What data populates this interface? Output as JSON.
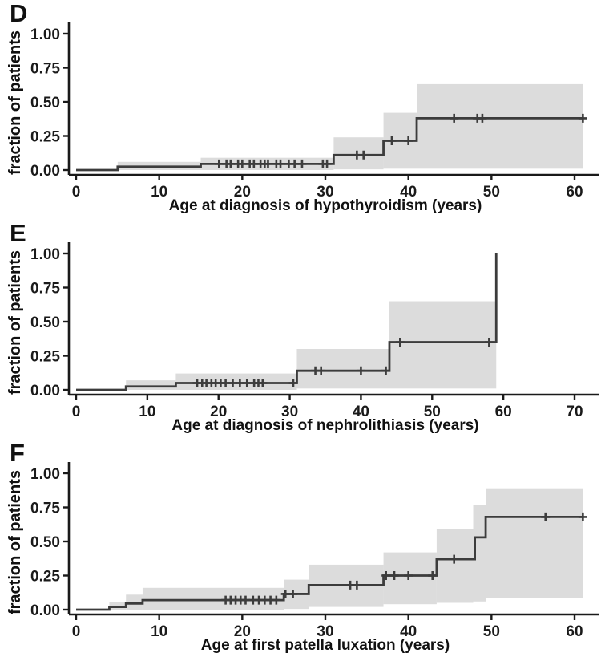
{
  "figure": {
    "background": "#ffffff",
    "text_color": "#1a1a1a",
    "panel_labels": [
      "D",
      "E",
      "F"
    ]
  },
  "chart_data": [
    {
      "type": "line",
      "subtype": "kaplan-meier-step",
      "panel_label": "D",
      "xlabel": "Age at diagnosis of hypothyroidism (years)",
      "ylabel": "fraction of patients",
      "x_ticks": [
        0,
        10,
        20,
        30,
        40,
        50,
        60
      ],
      "y_ticks": [
        {
          "v": 0.0,
          "label": "0.00"
        },
        {
          "v": 0.25,
          "label": "0.25"
        },
        {
          "v": 0.5,
          "label": "0.50"
        },
        {
          "v": 0.75,
          "label": "0.75"
        },
        {
          "v": 1.0,
          "label": "1.00"
        }
      ],
      "ylim": [
        0,
        1
      ],
      "end_x": 61,
      "steps": [
        {
          "x": 0,
          "y": 0
        },
        {
          "x": 5,
          "y": 0.025
        },
        {
          "x": 15,
          "y": 0.045
        },
        {
          "x": 31,
          "y": 0.11
        },
        {
          "x": 37,
          "y": 0.215
        },
        {
          "x": 41,
          "y": 0.38
        }
      ],
      "band": [
        {
          "x0": 5,
          "x1": 15,
          "lo": 0.0,
          "hi": 0.06
        },
        {
          "x0": 15,
          "x1": 31,
          "lo": 0.0,
          "hi": 0.09
        },
        {
          "x0": 31,
          "x1": 37,
          "lo": 0.005,
          "hi": 0.24
        },
        {
          "x0": 37,
          "x1": 41,
          "lo": 0.01,
          "hi": 0.42
        },
        {
          "x0": 41,
          "x1": 61,
          "lo": 0.01,
          "hi": 0.63
        }
      ],
      "censors": [
        [
          17.2,
          0.045
        ],
        [
          18.1,
          0.045
        ],
        [
          18.6,
          0.045
        ],
        [
          19.5,
          0.045
        ],
        [
          20.0,
          0.045
        ],
        [
          20.9,
          0.045
        ],
        [
          21.4,
          0.045
        ],
        [
          22.2,
          0.045
        ],
        [
          22.7,
          0.045
        ],
        [
          23.1,
          0.045
        ],
        [
          24.1,
          0.045
        ],
        [
          24.6,
          0.045
        ],
        [
          25.6,
          0.045
        ],
        [
          26.3,
          0.045
        ],
        [
          27.2,
          0.045
        ],
        [
          29.7,
          0.045
        ],
        [
          30.2,
          0.045
        ],
        [
          33.8,
          0.11
        ],
        [
          34.6,
          0.11
        ],
        [
          38.0,
          0.215
        ],
        [
          40.0,
          0.215
        ],
        [
          45.5,
          0.38
        ],
        [
          48.3,
          0.38
        ],
        [
          48.9,
          0.38
        ],
        [
          61.0,
          0.38
        ]
      ],
      "colors": {
        "band": "#dcdcdc",
        "line": "#3c3c3c",
        "axis": "#1a1a1a"
      }
    },
    {
      "type": "line",
      "subtype": "kaplan-meier-step",
      "panel_label": "E",
      "xlabel": "Age at diagnosis of nephrolithiasis (years)",
      "ylabel": "fraction of patients",
      "x_ticks": [
        0,
        10,
        20,
        30,
        40,
        50,
        60,
        70
      ],
      "y_ticks": [
        {
          "v": 0.0,
          "label": "0.00"
        },
        {
          "v": 0.25,
          "label": "0.25"
        },
        {
          "v": 0.5,
          "label": "0.50"
        },
        {
          "v": 0.75,
          "label": "0.75"
        },
        {
          "v": 1.0,
          "label": "1.00"
        }
      ],
      "ylim": [
        0,
        1
      ],
      "end_x": 59,
      "steps": [
        {
          "x": 0,
          "y": 0
        },
        {
          "x": 7,
          "y": 0.025
        },
        {
          "x": 14,
          "y": 0.05
        },
        {
          "x": 31,
          "y": 0.14
        },
        {
          "x": 44,
          "y": 0.35
        },
        {
          "x": 59,
          "y": 1.0
        }
      ],
      "band": [
        {
          "x0": 7,
          "x1": 14,
          "lo": 0.0,
          "hi": 0.07
        },
        {
          "x0": 14,
          "x1": 31,
          "lo": 0.0,
          "hi": 0.12
        },
        {
          "x0": 31,
          "x1": 44,
          "lo": 0.01,
          "hi": 0.3
        },
        {
          "x0": 44,
          "x1": 59,
          "lo": 0.01,
          "hi": 0.65
        }
      ],
      "censors": [
        [
          17.0,
          0.05
        ],
        [
          17.7,
          0.05
        ],
        [
          18.3,
          0.05
        ],
        [
          19.0,
          0.05
        ],
        [
          19.6,
          0.05
        ],
        [
          20.3,
          0.05
        ],
        [
          21.0,
          0.05
        ],
        [
          22.0,
          0.05
        ],
        [
          23.0,
          0.05
        ],
        [
          24.0,
          0.05
        ],
        [
          25.0,
          0.05
        ],
        [
          25.6,
          0.05
        ],
        [
          26.2,
          0.05
        ],
        [
          30.5,
          0.05
        ],
        [
          33.6,
          0.14
        ],
        [
          34.4,
          0.14
        ],
        [
          40.0,
          0.14
        ],
        [
          43.5,
          0.14
        ],
        [
          45.5,
          0.35
        ],
        [
          58.0,
          0.35
        ]
      ],
      "colors": {
        "band": "#dcdcdc",
        "line": "#3c3c3c",
        "axis": "#1a1a1a"
      }
    },
    {
      "type": "line",
      "subtype": "kaplan-meier-step",
      "panel_label": "F",
      "xlabel": "Age at first patella luxation (years)",
      "ylabel": "fraction of patients",
      "x_ticks": [
        0,
        10,
        20,
        30,
        40,
        50,
        60
      ],
      "y_ticks": [
        {
          "v": 0.0,
          "label": "0.00"
        },
        {
          "v": 0.25,
          "label": "0.25"
        },
        {
          "v": 0.5,
          "label": "0.50"
        },
        {
          "v": 0.75,
          "label": "0.75"
        },
        {
          "v": 1.0,
          "label": "1.00"
        }
      ],
      "ylim": [
        0,
        1
      ],
      "end_x": 61,
      "steps": [
        {
          "x": 0,
          "y": 0
        },
        {
          "x": 4,
          "y": 0.02
        },
        {
          "x": 6,
          "y": 0.045
        },
        {
          "x": 8,
          "y": 0.07
        },
        {
          "x": 25,
          "y": 0.115
        },
        {
          "x": 28,
          "y": 0.18
        },
        {
          "x": 37,
          "y": 0.25
        },
        {
          "x": 43.4,
          "y": 0.37
        },
        {
          "x": 48,
          "y": 0.53
        },
        {
          "x": 49.3,
          "y": 0.68
        }
      ],
      "band": [
        {
          "x0": 4,
          "x1": 6,
          "lo": 0.0,
          "hi": 0.055
        },
        {
          "x0": 6,
          "x1": 8,
          "lo": 0.0,
          "hi": 0.11
        },
        {
          "x0": 8,
          "x1": 25,
          "lo": 0.0,
          "hi": 0.16
        },
        {
          "x0": 25,
          "x1": 28,
          "lo": 0.005,
          "hi": 0.22
        },
        {
          "x0": 28,
          "x1": 37,
          "lo": 0.02,
          "hi": 0.33
        },
        {
          "x0": 37,
          "x1": 43.4,
          "lo": 0.04,
          "hi": 0.42
        },
        {
          "x0": 43.4,
          "x1": 47.8,
          "lo": 0.05,
          "hi": 0.59
        },
        {
          "x0": 47.8,
          "x1": 49.3,
          "lo": 0.06,
          "hi": 0.77
        },
        {
          "x0": 49.3,
          "x1": 61,
          "lo": 0.085,
          "hi": 0.89
        }
      ],
      "censors": [
        [
          18.0,
          0.07
        ],
        [
          18.6,
          0.07
        ],
        [
          19.2,
          0.07
        ],
        [
          19.8,
          0.07
        ],
        [
          20.4,
          0.07
        ],
        [
          21.3,
          0.07
        ],
        [
          22.0,
          0.07
        ],
        [
          22.7,
          0.07
        ],
        [
          23.4,
          0.07
        ],
        [
          24.1,
          0.07
        ],
        [
          25.2,
          0.115
        ],
        [
          26.1,
          0.115
        ],
        [
          33.0,
          0.18
        ],
        [
          33.8,
          0.18
        ],
        [
          37.3,
          0.25
        ],
        [
          38.3,
          0.25
        ],
        [
          40.0,
          0.25
        ],
        [
          42.9,
          0.25
        ],
        [
          45.5,
          0.37
        ],
        [
          56.5,
          0.68
        ],
        [
          61.0,
          0.68
        ]
      ],
      "colors": {
        "band": "#dcdcdc",
        "line": "#3c3c3c",
        "axis": "#1a1a1a"
      }
    }
  ]
}
